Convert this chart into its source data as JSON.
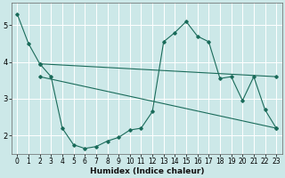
{
  "xlabel": "Humidex (Indice chaleur)",
  "bg_color": "#cce8e8",
  "grid_color": "#ffffff",
  "line_color": "#1a6b5a",
  "xlim": [
    -0.5,
    23.5
  ],
  "ylim": [
    1.5,
    5.6
  ],
  "yticks": [
    2,
    3,
    4,
    5
  ],
  "xticks": [
    0,
    1,
    2,
    3,
    4,
    5,
    6,
    7,
    8,
    9,
    10,
    11,
    12,
    13,
    14,
    15,
    16,
    17,
    18,
    19,
    20,
    21,
    22,
    23
  ],
  "series": [
    {
      "x": [
        0,
        1,
        2,
        3,
        4,
        5,
        6,
        7,
        8,
        9,
        10,
        11,
        12,
        13,
        14,
        15,
        16,
        17,
        18,
        19,
        20,
        21,
        22,
        23
      ],
      "y": [
        5.3,
        4.5,
        3.95,
        3.6,
        2.2,
        1.75,
        1.65,
        1.7,
        1.85,
        1.95,
        2.15,
        2.2,
        2.65,
        4.55,
        4.8,
        5.1,
        4.7,
        4.55,
        3.55,
        3.6,
        2.95,
        3.6,
        2.7,
        2.2
      ]
    },
    {
      "x": [
        2,
        23
      ],
      "y": [
        3.95,
        3.6
      ]
    },
    {
      "x": [
        2,
        23
      ],
      "y": [
        3.6,
        2.2
      ]
    }
  ]
}
